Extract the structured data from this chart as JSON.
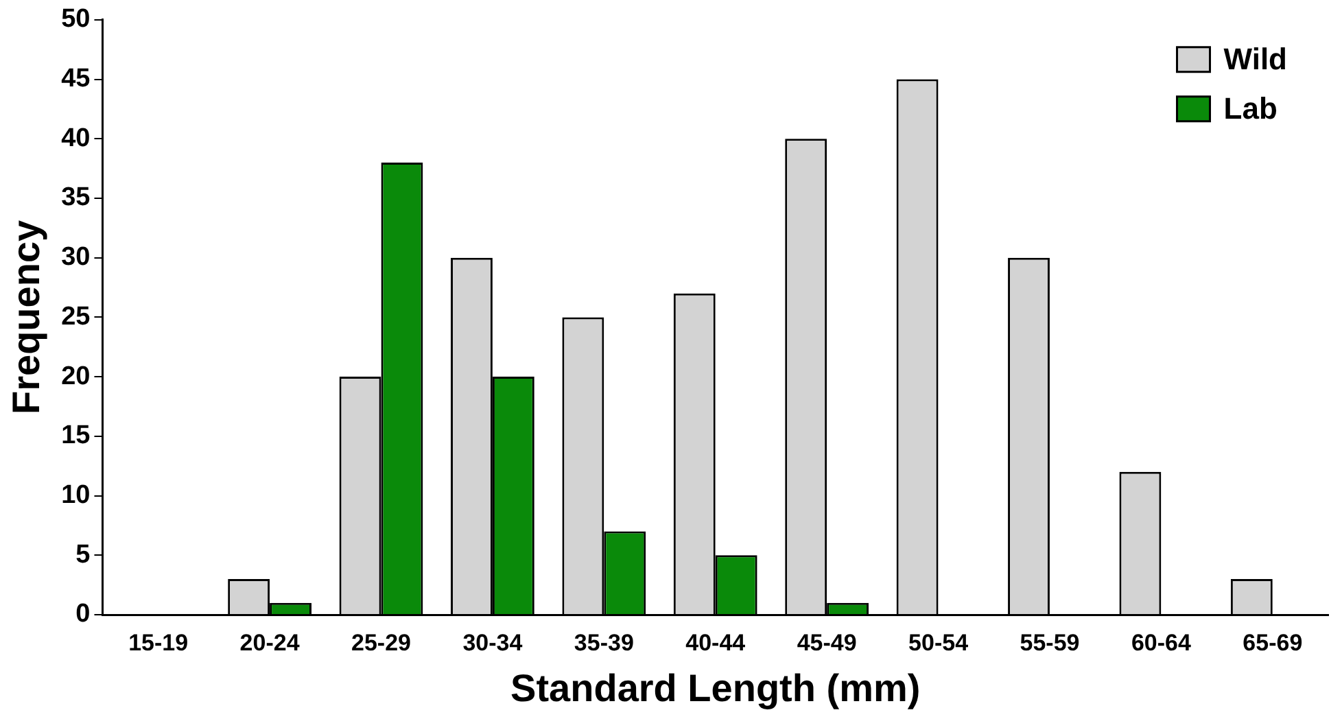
{
  "chart_data": {
    "type": "bar",
    "xlabel": "Standard Length (mm)",
    "ylabel": "Frequency",
    "categories": [
      "15-19",
      "20-24",
      "25-29",
      "30-34",
      "35-39",
      "40-44",
      "45-49",
      "50-54",
      "55-59",
      "60-64",
      "65-69"
    ],
    "series": [
      {
        "name": "Wild",
        "color": "#d3d3d3",
        "values": [
          0,
          3,
          20,
          30,
          25,
          27,
          40,
          45,
          30,
          12,
          3
        ]
      },
      {
        "name": "Lab",
        "color": "#0a8a0a",
        "values": [
          0,
          1,
          38,
          20,
          7,
          5,
          1,
          0,
          0,
          0,
          0
        ]
      }
    ],
    "ylim": [
      0,
      50
    ],
    "yticks": [
      0,
      5,
      10,
      15,
      20,
      25,
      30,
      35,
      40,
      45,
      50
    ],
    "grid": false,
    "legend": "top right"
  }
}
